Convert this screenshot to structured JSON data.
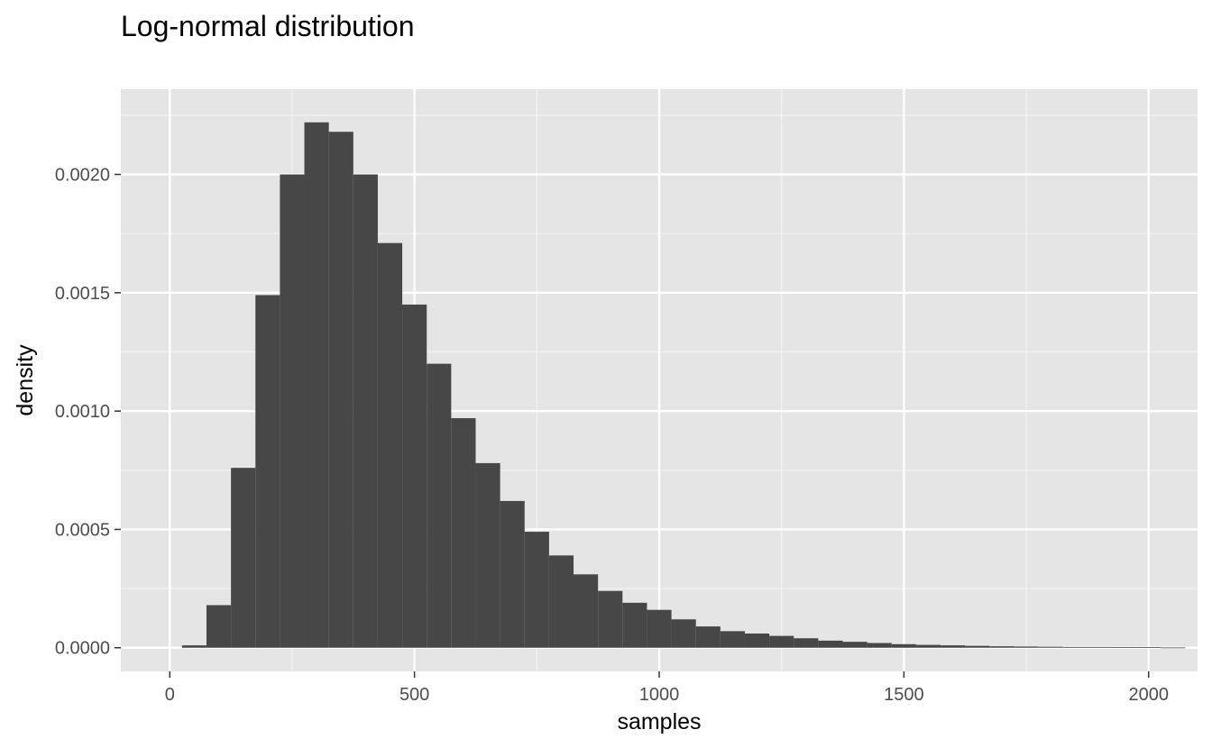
{
  "chart_data": {
    "type": "bar",
    "title": "Log-normal distribution",
    "xlabel": "samples",
    "ylabel": "density",
    "xlim": [
      -100,
      2100
    ],
    "ylim": [
      -0.0001,
      0.00236
    ],
    "x_ticks": [
      0,
      500,
      1000,
      1500,
      2000
    ],
    "x_tick_labels": [
      "0",
      "500",
      "1000",
      "1500",
      "2000"
    ],
    "y_ticks": [
      0,
      0.0005,
      0.001,
      0.0015,
      0.002
    ],
    "y_tick_labels": [
      "0.0000",
      "0.0005",
      "0.0010",
      "0.0015",
      "0.0020"
    ],
    "bin_width": 50,
    "bins": [
      {
        "x": 50,
        "value": 1e-05
      },
      {
        "x": 100,
        "value": 0.00018
      },
      {
        "x": 150,
        "value": 0.00076
      },
      {
        "x": 200,
        "value": 0.00149
      },
      {
        "x": 250,
        "value": 0.002
      },
      {
        "x": 300,
        "value": 0.00222
      },
      {
        "x": 350,
        "value": 0.00218
      },
      {
        "x": 400,
        "value": 0.002
      },
      {
        "x": 450,
        "value": 0.00171
      },
      {
        "x": 500,
        "value": 0.00145
      },
      {
        "x": 550,
        "value": 0.0012
      },
      {
        "x": 600,
        "value": 0.00097
      },
      {
        "x": 650,
        "value": 0.00078
      },
      {
        "x": 700,
        "value": 0.00062
      },
      {
        "x": 750,
        "value": 0.00049
      },
      {
        "x": 800,
        "value": 0.00039
      },
      {
        "x": 850,
        "value": 0.00031
      },
      {
        "x": 900,
        "value": 0.00024
      },
      {
        "x": 950,
        "value": 0.00019
      },
      {
        "x": 1000,
        "value": 0.00016
      },
      {
        "x": 1050,
        "value": 0.00012
      },
      {
        "x": 1100,
        "value": 9e-05
      },
      {
        "x": 1150,
        "value": 7e-05
      },
      {
        "x": 1200,
        "value": 6e-05
      },
      {
        "x": 1250,
        "value": 5e-05
      },
      {
        "x": 1300,
        "value": 4e-05
      },
      {
        "x": 1350,
        "value": 3e-05
      },
      {
        "x": 1400,
        "value": 2.5e-05
      },
      {
        "x": 1450,
        "value": 2e-05
      },
      {
        "x": 1500,
        "value": 1.5e-05
      },
      {
        "x": 1550,
        "value": 1.2e-05
      },
      {
        "x": 1600,
        "value": 1e-05
      },
      {
        "x": 1650,
        "value": 8e-06
      },
      {
        "x": 1700,
        "value": 6e-06
      },
      {
        "x": 1750,
        "value": 5e-06
      },
      {
        "x": 1800,
        "value": 4e-06
      },
      {
        "x": 1850,
        "value": 3e-06
      },
      {
        "x": 1900,
        "value": 3e-06
      },
      {
        "x": 1950,
        "value": 2e-06
      },
      {
        "x": 2000,
        "value": 2e-06
      },
      {
        "x": 2050,
        "value": 1e-06
      }
    ],
    "grid": true,
    "colors": {
      "bar_fill": "#474747",
      "panel_background": "#e5e5e5",
      "grid_major": "#ffffff",
      "grid_minor": "#f2f2f2",
      "tick_mark": "#333333"
    }
  }
}
